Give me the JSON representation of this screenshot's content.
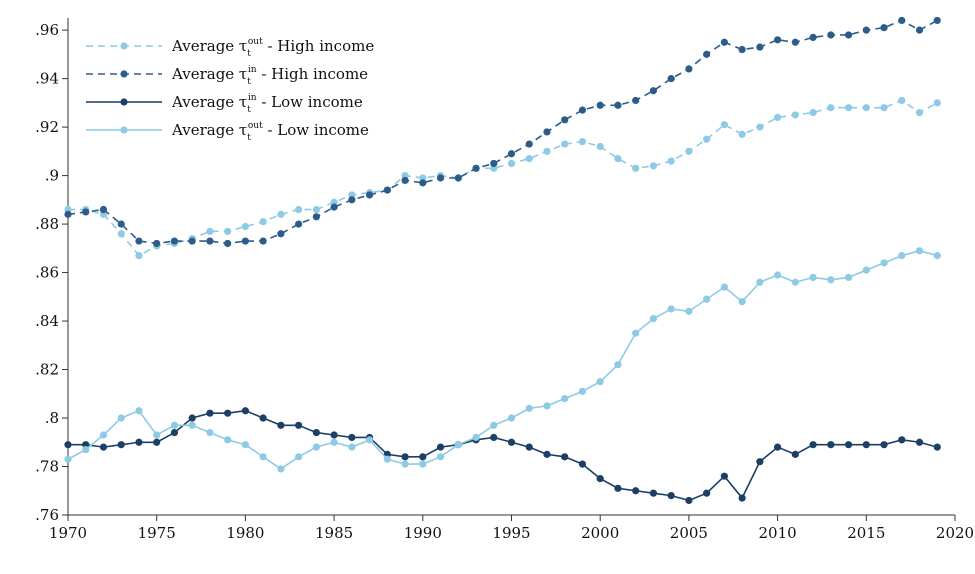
{
  "chart_data": {
    "type": "line",
    "title": "",
    "xlabel": "",
    "ylabel": "",
    "xlim": [
      1970,
      2020
    ],
    "ylim": [
      0.76,
      0.965
    ],
    "x_ticks": [
      1970,
      1975,
      1980,
      1985,
      1990,
      1995,
      2000,
      2005,
      2010,
      2015,
      2020
    ],
    "x_tick_labels": [
      "1970",
      "1975",
      "1980",
      "1985",
      "1990",
      "1995",
      "2000",
      "2005",
      "2010",
      "2015",
      "2020"
    ],
    "y_ticks": [
      0.76,
      0.78,
      0.8,
      0.82,
      0.84,
      0.86,
      0.88,
      0.9,
      0.92,
      0.94,
      0.96
    ],
    "y_tick_labels": [
      ".76",
      ".78",
      ".8",
      ".82",
      ".84",
      ".86",
      ".88",
      ".9",
      ".92",
      ".94",
      ".96"
    ],
    "grid": false,
    "legend_position": "top-left",
    "x": [
      1970,
      1971,
      1972,
      1973,
      1974,
      1975,
      1976,
      1977,
      1978,
      1979,
      1980,
      1981,
      1982,
      1983,
      1984,
      1985,
      1986,
      1987,
      1988,
      1989,
      1990,
      1991,
      1992,
      1993,
      1994,
      1995,
      1996,
      1997,
      1998,
      1999,
      2000,
      2001,
      2002,
      2003,
      2004,
      2005,
      2006,
      2007,
      2008,
      2009,
      2010,
      2011,
      2012,
      2013,
      2014,
      2015,
      2016,
      2017,
      2018,
      2019
    ],
    "series": [
      {
        "legend_prefix": "Average τ",
        "legend_sub": "t",
        "legend_sup": "out",
        "legend_suffix": " - High income",
        "color": "#8ecae6",
        "dashed": true,
        "values": [
          0.886,
          0.886,
          0.884,
          0.876,
          0.867,
          0.871,
          0.872,
          0.874,
          0.877,
          0.877,
          0.879,
          0.881,
          0.884,
          0.886,
          0.886,
          0.889,
          0.892,
          0.893,
          0.894,
          0.9,
          0.899,
          0.9,
          0.899,
          0.903,
          0.903,
          0.905,
          0.907,
          0.91,
          0.913,
          0.914,
          0.912,
          0.907,
          0.903,
          0.904,
          0.906,
          0.91,
          0.915,
          0.921,
          0.917,
          0.92,
          0.924,
          0.925,
          0.926,
          0.928,
          0.928,
          0.928,
          0.928,
          0.931,
          0.926,
          0.93
        ]
      },
      {
        "legend_prefix": "Average τ",
        "legend_sub": "t",
        "legend_sup": "in",
        "legend_suffix": " - High income",
        "color": "#2c5c8a",
        "dashed": true,
        "values": [
          0.884,
          0.885,
          0.886,
          0.88,
          0.873,
          0.872,
          0.873,
          0.873,
          0.873,
          0.872,
          0.873,
          0.873,
          0.876,
          0.88,
          0.883,
          0.887,
          0.89,
          0.892,
          0.894,
          0.898,
          0.897,
          0.899,
          0.899,
          0.903,
          0.905,
          0.909,
          0.913,
          0.918,
          0.923,
          0.927,
          0.929,
          0.929,
          0.931,
          0.935,
          0.94,
          0.944,
          0.95,
          0.955,
          0.952,
          0.953,
          0.956,
          0.955,
          0.957,
          0.958,
          0.958,
          0.96,
          0.961,
          0.964,
          0.96,
          0.964
        ]
      },
      {
        "legend_prefix": "Average τ",
        "legend_sub": "t",
        "legend_sup": "in",
        "legend_suffix": " - Low income",
        "color": "#1c3f66",
        "dashed": false,
        "values": [
          0.789,
          0.789,
          0.788,
          0.789,
          0.79,
          0.79,
          0.794,
          0.8,
          0.802,
          0.802,
          0.803,
          0.8,
          0.797,
          0.797,
          0.794,
          0.793,
          0.792,
          0.792,
          0.785,
          0.784,
          0.784,
          0.788,
          0.789,
          0.791,
          0.792,
          0.79,
          0.788,
          0.785,
          0.784,
          0.781,
          0.775,
          0.771,
          0.77,
          0.769,
          0.768,
          0.766,
          0.769,
          0.776,
          0.767,
          0.782,
          0.788,
          0.785,
          0.789,
          0.789,
          0.789,
          0.789,
          0.789,
          0.791,
          0.79,
          0.788
        ]
      },
      {
        "legend_prefix": "Average τ",
        "legend_sub": "t",
        "legend_sup": "out",
        "legend_suffix": " - Low income",
        "color": "#8ecae6",
        "dashed": false,
        "values": [
          0.783,
          0.787,
          0.793,
          0.8,
          0.803,
          0.793,
          0.797,
          0.797,
          0.794,
          0.791,
          0.789,
          0.784,
          0.779,
          0.784,
          0.788,
          0.79,
          0.788,
          0.791,
          0.783,
          0.781,
          0.781,
          0.784,
          0.789,
          0.792,
          0.797,
          0.8,
          0.804,
          0.805,
          0.808,
          0.811,
          0.815,
          0.822,
          0.835,
          0.841,
          0.845,
          0.844,
          0.849,
          0.854,
          0.848,
          0.856,
          0.859,
          0.856,
          0.858,
          0.857,
          0.858,
          0.861,
          0.864,
          0.867,
          0.869,
          0.867
        ]
      }
    ]
  }
}
